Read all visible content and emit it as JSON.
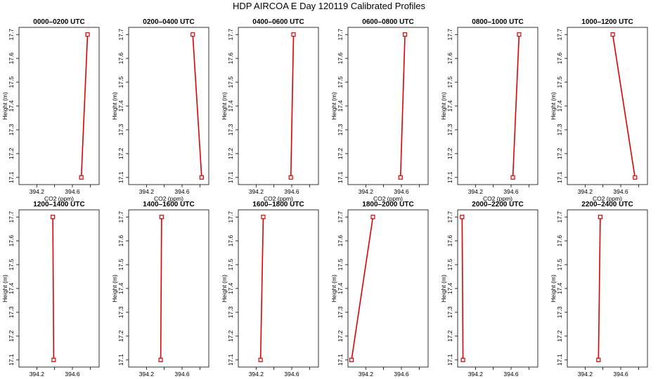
{
  "title": "HDP AIRCOA E  Day 120119  Calibrated Profiles",
  "colors": {
    "line": "#e00000",
    "marker": "#e00000",
    "frame": "#000000"
  },
  "chart_data": [
    {
      "type": "line",
      "title": "0000–0200 UTC",
      "xlabel": "CO2 (ppm)",
      "ylabel": "Height (m)",
      "xlim": [
        394.0,
        394.9
      ],
      "ylim": [
        17.07,
        17.73
      ],
      "xticks": [
        "394.2",
        "394.6"
      ],
      "yticks": [
        "17.1",
        "17.2",
        "17.3",
        "17.4",
        "17.5",
        "17.6",
        "17.7"
      ],
      "x": [
        394.7,
        394.77
      ],
      "y": [
        17.1,
        17.7
      ]
    },
    {
      "type": "line",
      "title": "0200–0400 UTC",
      "xlabel": "CO2 (ppm)",
      "ylabel": "Height (m)",
      "xlim": [
        394.0,
        394.9
      ],
      "ylim": [
        17.07,
        17.73
      ],
      "xticks": [
        "394.2",
        "394.6"
      ],
      "yticks": [
        "17.1",
        "17.2",
        "17.3",
        "17.4",
        "17.5",
        "17.6",
        "17.7"
      ],
      "x": [
        394.82,
        394.72
      ],
      "y": [
        17.1,
        17.7
      ]
    },
    {
      "type": "line",
      "title": "0400–0600 UTC",
      "xlabel": "CO2 (ppm)",
      "ylabel": "Height (m)",
      "xlim": [
        394.0,
        394.9
      ],
      "ylim": [
        17.07,
        17.73
      ],
      "xticks": [
        "394.2",
        "394.6"
      ],
      "yticks": [
        "17.1",
        "17.2",
        "17.3",
        "17.4",
        "17.5",
        "17.6",
        "17.7"
      ],
      "x": [
        394.59,
        394.62
      ],
      "y": [
        17.1,
        17.7
      ]
    },
    {
      "type": "line",
      "title": "0600–0800 UTC",
      "xlabel": "CO2 (ppm)",
      "ylabel": "Height (m)",
      "xlim": [
        394.0,
        394.9
      ],
      "ylim": [
        17.07,
        17.73
      ],
      "xticks": [
        "394.2",
        "394.6"
      ],
      "yticks": [
        "17.1",
        "17.2",
        "17.3",
        "17.4",
        "17.5",
        "17.6",
        "17.7"
      ],
      "x": [
        394.59,
        394.64
      ],
      "y": [
        17.1,
        17.7
      ]
    },
    {
      "type": "line",
      "title": "0800–1000 UTC",
      "xlabel": "CO2 (ppm)",
      "ylabel": "Height (m)",
      "xlim": [
        394.0,
        394.9
      ],
      "ylim": [
        17.07,
        17.73
      ],
      "xticks": [
        "394.2",
        "394.6"
      ],
      "yticks": [
        "17.1",
        "17.2",
        "17.3",
        "17.4",
        "17.5",
        "17.6",
        "17.7"
      ],
      "x": [
        394.62,
        394.69
      ],
      "y": [
        17.1,
        17.7
      ]
    },
    {
      "type": "line",
      "title": "1000–1200 UTC",
      "xlabel": "CO2 (ppm)",
      "ylabel": "Height (m)",
      "xlim": [
        394.0,
        394.9
      ],
      "ylim": [
        17.07,
        17.73
      ],
      "xticks": [
        "394.2",
        "394.6"
      ],
      "yticks": [
        "17.1",
        "17.2",
        "17.3",
        "17.4",
        "17.5",
        "17.6",
        "17.7"
      ],
      "x": [
        394.76,
        394.51
      ],
      "y": [
        17.1,
        17.7
      ]
    },
    {
      "type": "line",
      "title": "1200–1400 UTC",
      "xlabel": "CO2 (ppm)",
      "ylabel": "Height (m)",
      "xlim": [
        394.0,
        394.9
      ],
      "ylim": [
        17.07,
        17.73
      ],
      "xticks": [
        "394.2",
        "394.6"
      ],
      "yticks": [
        "17.1",
        "17.2",
        "17.3",
        "17.4",
        "17.5",
        "17.6",
        "17.7"
      ],
      "x": [
        394.39,
        394.38
      ],
      "y": [
        17.1,
        17.7
      ]
    },
    {
      "type": "line",
      "title": "1400–1600 UTC",
      "xlabel": "CO2 (ppm)",
      "ylabel": "Height (m)",
      "xlim": [
        394.0,
        394.9
      ],
      "ylim": [
        17.07,
        17.73
      ],
      "xticks": [
        "394.2",
        "394.6"
      ],
      "yticks": [
        "17.1",
        "17.2",
        "17.3",
        "17.4",
        "17.5",
        "17.6",
        "17.7"
      ],
      "x": [
        394.36,
        394.37
      ],
      "y": [
        17.1,
        17.7
      ]
    },
    {
      "type": "line",
      "title": "1600–1800 UTC",
      "xlabel": "CO2 (ppm)",
      "ylabel": "Height (m)",
      "xlim": [
        394.0,
        394.9
      ],
      "ylim": [
        17.07,
        17.73
      ],
      "xticks": [
        "394.2",
        "394.6"
      ],
      "yticks": [
        "17.1",
        "17.2",
        "17.3",
        "17.4",
        "17.5",
        "17.6",
        "17.7"
      ],
      "x": [
        394.25,
        394.28
      ],
      "y": [
        17.1,
        17.7
      ]
    },
    {
      "type": "line",
      "title": "1800–2000 UTC",
      "xlabel": "CO2 (ppm)",
      "ylabel": "Height (m)",
      "xlim": [
        394.0,
        394.9
      ],
      "ylim": [
        17.07,
        17.73
      ],
      "xticks": [
        "394.2",
        "394.6"
      ],
      "yticks": [
        "17.1",
        "17.2",
        "17.3",
        "17.4",
        "17.5",
        "17.6",
        "17.7"
      ],
      "x": [
        394.04,
        394.28
      ],
      "y": [
        17.1,
        17.7
      ]
    },
    {
      "type": "line",
      "title": "2000–2200 UTC",
      "xlabel": "CO2 (ppm)",
      "ylabel": "Height (m)",
      "xlim": [
        394.0,
        394.9
      ],
      "ylim": [
        17.07,
        17.73
      ],
      "xticks": [
        "394.2",
        "394.6"
      ],
      "yticks": [
        "17.1",
        "17.2",
        "17.3",
        "17.4",
        "17.5",
        "17.6",
        "17.7"
      ],
      "x": [
        394.06,
        394.05
      ],
      "y": [
        17.1,
        17.7
      ]
    },
    {
      "type": "line",
      "title": "2200–2400 UTC",
      "xlabel": "CO2 (ppm)",
      "ylabel": "Height (m)",
      "xlim": [
        394.0,
        394.9
      ],
      "ylim": [
        17.07,
        17.73
      ],
      "xticks": [
        "394.2",
        "394.6"
      ],
      "yticks": [
        "17.1",
        "17.2",
        "17.3",
        "17.4",
        "17.5",
        "17.6",
        "17.7"
      ],
      "x": [
        394.35,
        394.37
      ],
      "y": [
        17.1,
        17.7
      ]
    }
  ]
}
